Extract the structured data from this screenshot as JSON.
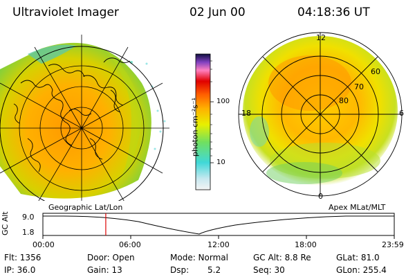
{
  "header": {
    "instrument": "Ultraviolet Imager",
    "date": "02 Jun 00",
    "time": "04:18:36 UT"
  },
  "colorbar": {
    "unit_label": "photon cm⁻²s⁻¹",
    "tick_100": "100",
    "tick_10": "10"
  },
  "left_panel": {
    "caption": "Geographic Lat/Lon"
  },
  "right_panel": {
    "caption": "Apex MLat/MLT",
    "mlt_top": "12",
    "mlt_left": "18",
    "mlt_right": "6",
    "mlt_bottom": "0",
    "lat_80": "80",
    "lat_70": "70",
    "lat_60": "60"
  },
  "altitude_plot": {
    "ylabel": "GC Alt",
    "y_top": "9.0",
    "y_bottom": "1.8",
    "x_labels": [
      "00:00",
      "06:00",
      "12:00",
      "18:00",
      "23:59"
    ],
    "marker_color": "#dd0000",
    "current_time_fraction_of_day": 0.179
  },
  "status": {
    "flt": "Flt: 1356",
    "ip": "IP: 36.0",
    "door": "Door: Open",
    "gain": "Gain: 13",
    "mode": "Mode: Normal",
    "dsp_label": "Dsp:",
    "dsp_value": "5.2",
    "gcalt": "GC Alt: 8.8 Re",
    "seq": "Seq: 30",
    "glat": "GLat: 81.0",
    "glon": "GLon: 255.4"
  }
}
